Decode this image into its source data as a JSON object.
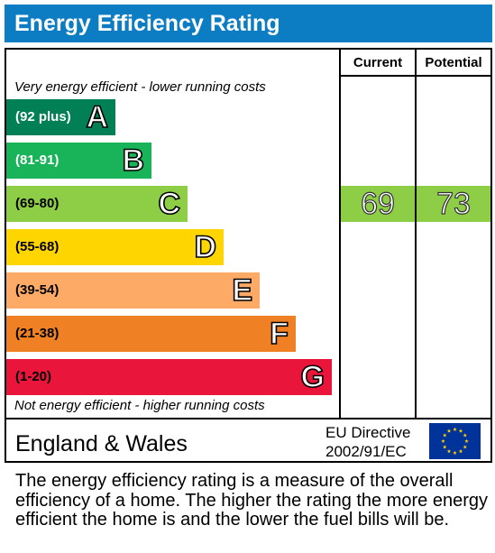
{
  "title": "Energy Efficiency Rating",
  "columns": {
    "current": "Current",
    "potential": "Potential"
  },
  "top_note": "Very energy efficient - lower running costs",
  "bottom_note": "Not energy efficient - higher running costs",
  "bands": [
    {
      "range": "(92 plus)",
      "letter": "A",
      "color": "#008054",
      "text_color": "#ffffff"
    },
    {
      "range": "(81-91)",
      "letter": "B",
      "color": "#19b459",
      "text_color": "#ffffff"
    },
    {
      "range": "(69-80)",
      "letter": "C",
      "color": "#8dce46",
      "text_color": "#000000"
    },
    {
      "range": "(55-68)",
      "letter": "D",
      "color": "#ffd500",
      "text_color": "#000000"
    },
    {
      "range": "(39-54)",
      "letter": "E",
      "color": "#fcaa65",
      "text_color": "#000000"
    },
    {
      "range": "(21-38)",
      "letter": "F",
      "color": "#ef8023",
      "text_color": "#000000"
    },
    {
      "range": "(1-20)",
      "letter": "G",
      "color": "#e9153b",
      "text_color": "#000000"
    }
  ],
  "current": {
    "value": "69",
    "band": "C",
    "color": "#8dce46"
  },
  "potential": {
    "value": "73",
    "band": "C",
    "color": "#8dce46"
  },
  "footer": {
    "region": "England & Wales",
    "directive_line1": "EU Directive",
    "directive_line2": "2002/91/EC",
    "flag_icon": "eu-flag-icon"
  },
  "description": "The energy efficiency rating is a measure of the overall efficiency of a home. The higher the rating the more energy efficient the home is and the lower the fuel bills will be.",
  "colors": {
    "header": "#0c7dc3",
    "flag_blue": "#003399",
    "flag_star": "#ffcc00"
  }
}
